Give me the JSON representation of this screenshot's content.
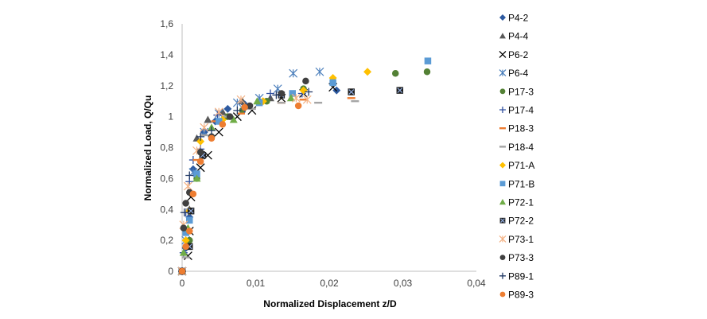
{
  "chart_data": {
    "type": "scatter",
    "title": "",
    "xlabel": "Normalized Displacement z/D",
    "ylabel": "Normalized Load, Q/Qu",
    "xlim": [
      0,
      0.04
    ],
    "ylim": [
      0,
      1.6
    ],
    "xticks": [
      "0",
      "0,01",
      "0,02",
      "0,03",
      "0,04"
    ],
    "yticks": [
      "0",
      "0,2",
      "0,4",
      "0,6",
      "0,8",
      "1",
      "1,2",
      "1,4",
      "1,6"
    ],
    "grid": false,
    "legend": "right",
    "series": [
      {
        "name": "P4-2",
        "marker": "diamond",
        "color": "#2E5AA0",
        "x": [
          0,
          0.0005,
          0.001,
          0.0015,
          0.003,
          0.0045,
          0.0062,
          0.0085,
          0.0105,
          0.021
        ],
        "y": [
          0,
          0.15,
          0.35,
          0.66,
          0.9,
          0.97,
          1.05,
          1.08,
          1.1,
          1.17
        ]
      },
      {
        "name": "P4-4",
        "marker": "triangle",
        "color": "#595959",
        "x": [
          0,
          0.0005,
          0.001,
          0.002,
          0.0035,
          0.0055,
          0.0082,
          0.012
        ],
        "y": [
          0,
          0.17,
          0.4,
          0.86,
          0.98,
          1.03,
          1.1,
          1.12
        ]
      },
      {
        "name": "P6-2",
        "marker": "x",
        "color": "#000000",
        "x": [
          0,
          0.0008,
          0.001,
          0.0012,
          0.0025,
          0.0035,
          0.005,
          0.0075,
          0.0095,
          0.0135,
          0.0165,
          0.0205
        ],
        "y": [
          0,
          0.1,
          0.26,
          0.48,
          0.67,
          0.75,
          0.9,
          1.0,
          1.04,
          1.12,
          1.15,
          1.19
        ]
      },
      {
        "name": "P6-4",
        "marker": "asterisk",
        "color": "#4A7EBB",
        "x": [
          0,
          0.0005,
          0.0015,
          0.003,
          0.005,
          0.0075,
          0.0105,
          0.013,
          0.0151,
          0.0187
        ],
        "y": [
          0,
          0.2,
          0.64,
          0.9,
          1.02,
          1.09,
          1.12,
          1.18,
          1.28,
          1.29
        ]
      },
      {
        "name": "P17-3",
        "marker": "circle",
        "color": "#538135",
        "x": [
          0,
          0.001,
          0.002,
          0.004,
          0.0062,
          0.0082,
          0.0115,
          0.0165,
          0.029,
          0.0333
        ],
        "y": [
          0,
          0.2,
          0.6,
          0.87,
          1.0,
          1.04,
          1.1,
          1.18,
          1.28,
          1.29
        ]
      },
      {
        "name": "P17-4",
        "marker": "plus",
        "color": "#2F4F9F",
        "x": [
          0,
          0.0002,
          0.0005,
          0.001,
          0.0015,
          0.0025,
          0.0048,
          0.0085,
          0.012,
          0.0163
        ],
        "y": [
          0,
          0.12,
          0.38,
          0.58,
          0.72,
          0.79,
          1.01,
          1.05,
          1.15,
          1.15
        ]
      },
      {
        "name": "P18-3",
        "marker": "dash",
        "color": "#ED7D31",
        "x": [
          0,
          0.0008,
          0.002,
          0.0045,
          0.008,
          0.0135,
          0.0165,
          0.023
        ],
        "y": [
          0,
          0.27,
          0.72,
          0.97,
          1.02,
          1.09,
          1.11,
          1.12
        ]
      },
      {
        "name": "P18-4",
        "marker": "dash",
        "color": "#A5A5A5",
        "x": [
          0,
          0.0005,
          0.001,
          0.003,
          0.006,
          0.0095,
          0.0135,
          0.0185,
          0.0235
        ],
        "y": [
          0,
          0.09,
          0.4,
          0.88,
          1.0,
          1.05,
          1.09,
          1.09,
          1.1
        ]
      },
      {
        "name": "P71-A",
        "marker": "diamond",
        "color": "#FFC000",
        "x": [
          0,
          0.0005,
          0.001,
          0.0025,
          0.0055,
          0.011,
          0.0165,
          0.0205,
          0.0252
        ],
        "y": [
          0,
          0.2,
          0.39,
          0.84,
          0.98,
          1.1,
          1.17,
          1.25,
          1.29
        ]
      },
      {
        "name": "P71-B",
        "marker": "square",
        "color": "#5B9BD5",
        "x": [
          0,
          0.0005,
          0.001,
          0.002,
          0.005,
          0.0105,
          0.015,
          0.0205,
          0.0334
        ],
        "y": [
          0,
          0.25,
          0.33,
          0.63,
          0.97,
          1.09,
          1.15,
          1.22,
          1.36
        ]
      },
      {
        "name": "P72-1",
        "marker": "triangle",
        "color": "#70AD47",
        "x": [
          0,
          0.0002,
          0.0008,
          0.002,
          0.004,
          0.007,
          0.0102,
          0.0148
        ],
        "y": [
          0,
          0.12,
          0.28,
          0.6,
          0.93,
          0.98,
          1.1,
          1.12
        ]
      },
      {
        "name": "P72-2",
        "marker": "boxx",
        "color": "#1F1F1F",
        "x": [
          0,
          0.001,
          0.0012,
          0.0028,
          0.0135,
          0.023,
          0.0296
        ],
        "y": [
          0,
          0.16,
          0.39,
          0.75,
          1.14,
          1.16,
          1.17
        ]
      },
      {
        "name": "P73-1",
        "marker": "asterisk",
        "color": "#F4B183",
        "x": [
          0,
          0.0002,
          0.0008,
          0.002,
          0.003,
          0.005,
          0.008,
          0.0155,
          0.017
        ],
        "y": [
          0,
          0.3,
          0.55,
          0.78,
          0.93,
          1.03,
          1.11,
          1.12,
          1.11
        ]
      },
      {
        "name": "P73-3",
        "marker": "circle",
        "color": "#404040",
        "x": [
          0,
          0.0002,
          0.0005,
          0.001,
          0.0025,
          0.004,
          0.0065,
          0.0092,
          0.0135,
          0.0168
        ],
        "y": [
          0,
          0.28,
          0.44,
          0.51,
          0.77,
          0.87,
          1.0,
          1.07,
          1.15,
          1.23
        ]
      },
      {
        "name": "P89-1",
        "marker": "plus",
        "color": "#203864",
        "x": [
          0,
          0.0003,
          0.001,
          0.0025,
          0.004,
          0.0075,
          0.0128,
          0.0172
        ],
        "y": [
          0,
          0.38,
          0.62,
          0.87,
          0.91,
          1.04,
          1.14,
          1.16
        ]
      },
      {
        "name": "P89-3",
        "marker": "circle",
        "color": "#ED7D31",
        "x": [
          0,
          0.0005,
          0.001,
          0.0015,
          0.0025,
          0.004,
          0.0055,
          0.0085,
          0.0158
        ],
        "y": [
          0,
          0.16,
          0.26,
          0.5,
          0.71,
          0.86,
          0.95,
          1.06,
          1.07
        ]
      }
    ]
  }
}
